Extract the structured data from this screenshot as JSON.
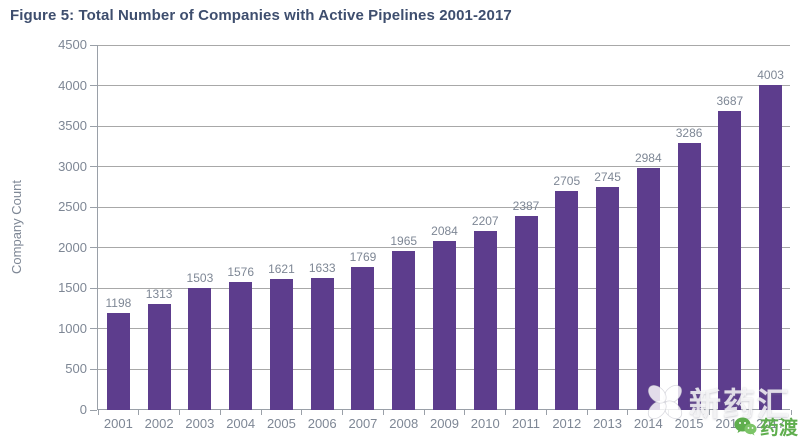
{
  "chart_data": {
    "type": "bar",
    "title": "Figure 5: Total Number of Companies with Active Pipelines 2001-2017",
    "xlabel": "",
    "ylabel": "Company Count",
    "categories": [
      "2001",
      "2002",
      "2003",
      "2004",
      "2005",
      "2006",
      "2007",
      "2008",
      "2009",
      "2010",
      "2011",
      "2012",
      "2013",
      "2014",
      "2015",
      "2016",
      "2017"
    ],
    "values": [
      1198,
      1313,
      1503,
      1576,
      1621,
      1633,
      1769,
      1965,
      2084,
      2207,
      2387,
      2705,
      2745,
      2984,
      3286,
      3687,
      4003
    ],
    "ylim": [
      0,
      4500
    ],
    "y_tick_step": 500,
    "grid": true,
    "legend": "none",
    "data_labels": true,
    "colors": {
      "bar": "#5d3d8d",
      "title": "#3e4e6e",
      "axis_text": "#7e8795",
      "gridline": "#a8a8a8",
      "axis_line": "#9aa0a8"
    }
  },
  "watermarks": {
    "center_text": "新药汇",
    "corner_text": "药渡",
    "corner_color": "#5fae4e"
  }
}
